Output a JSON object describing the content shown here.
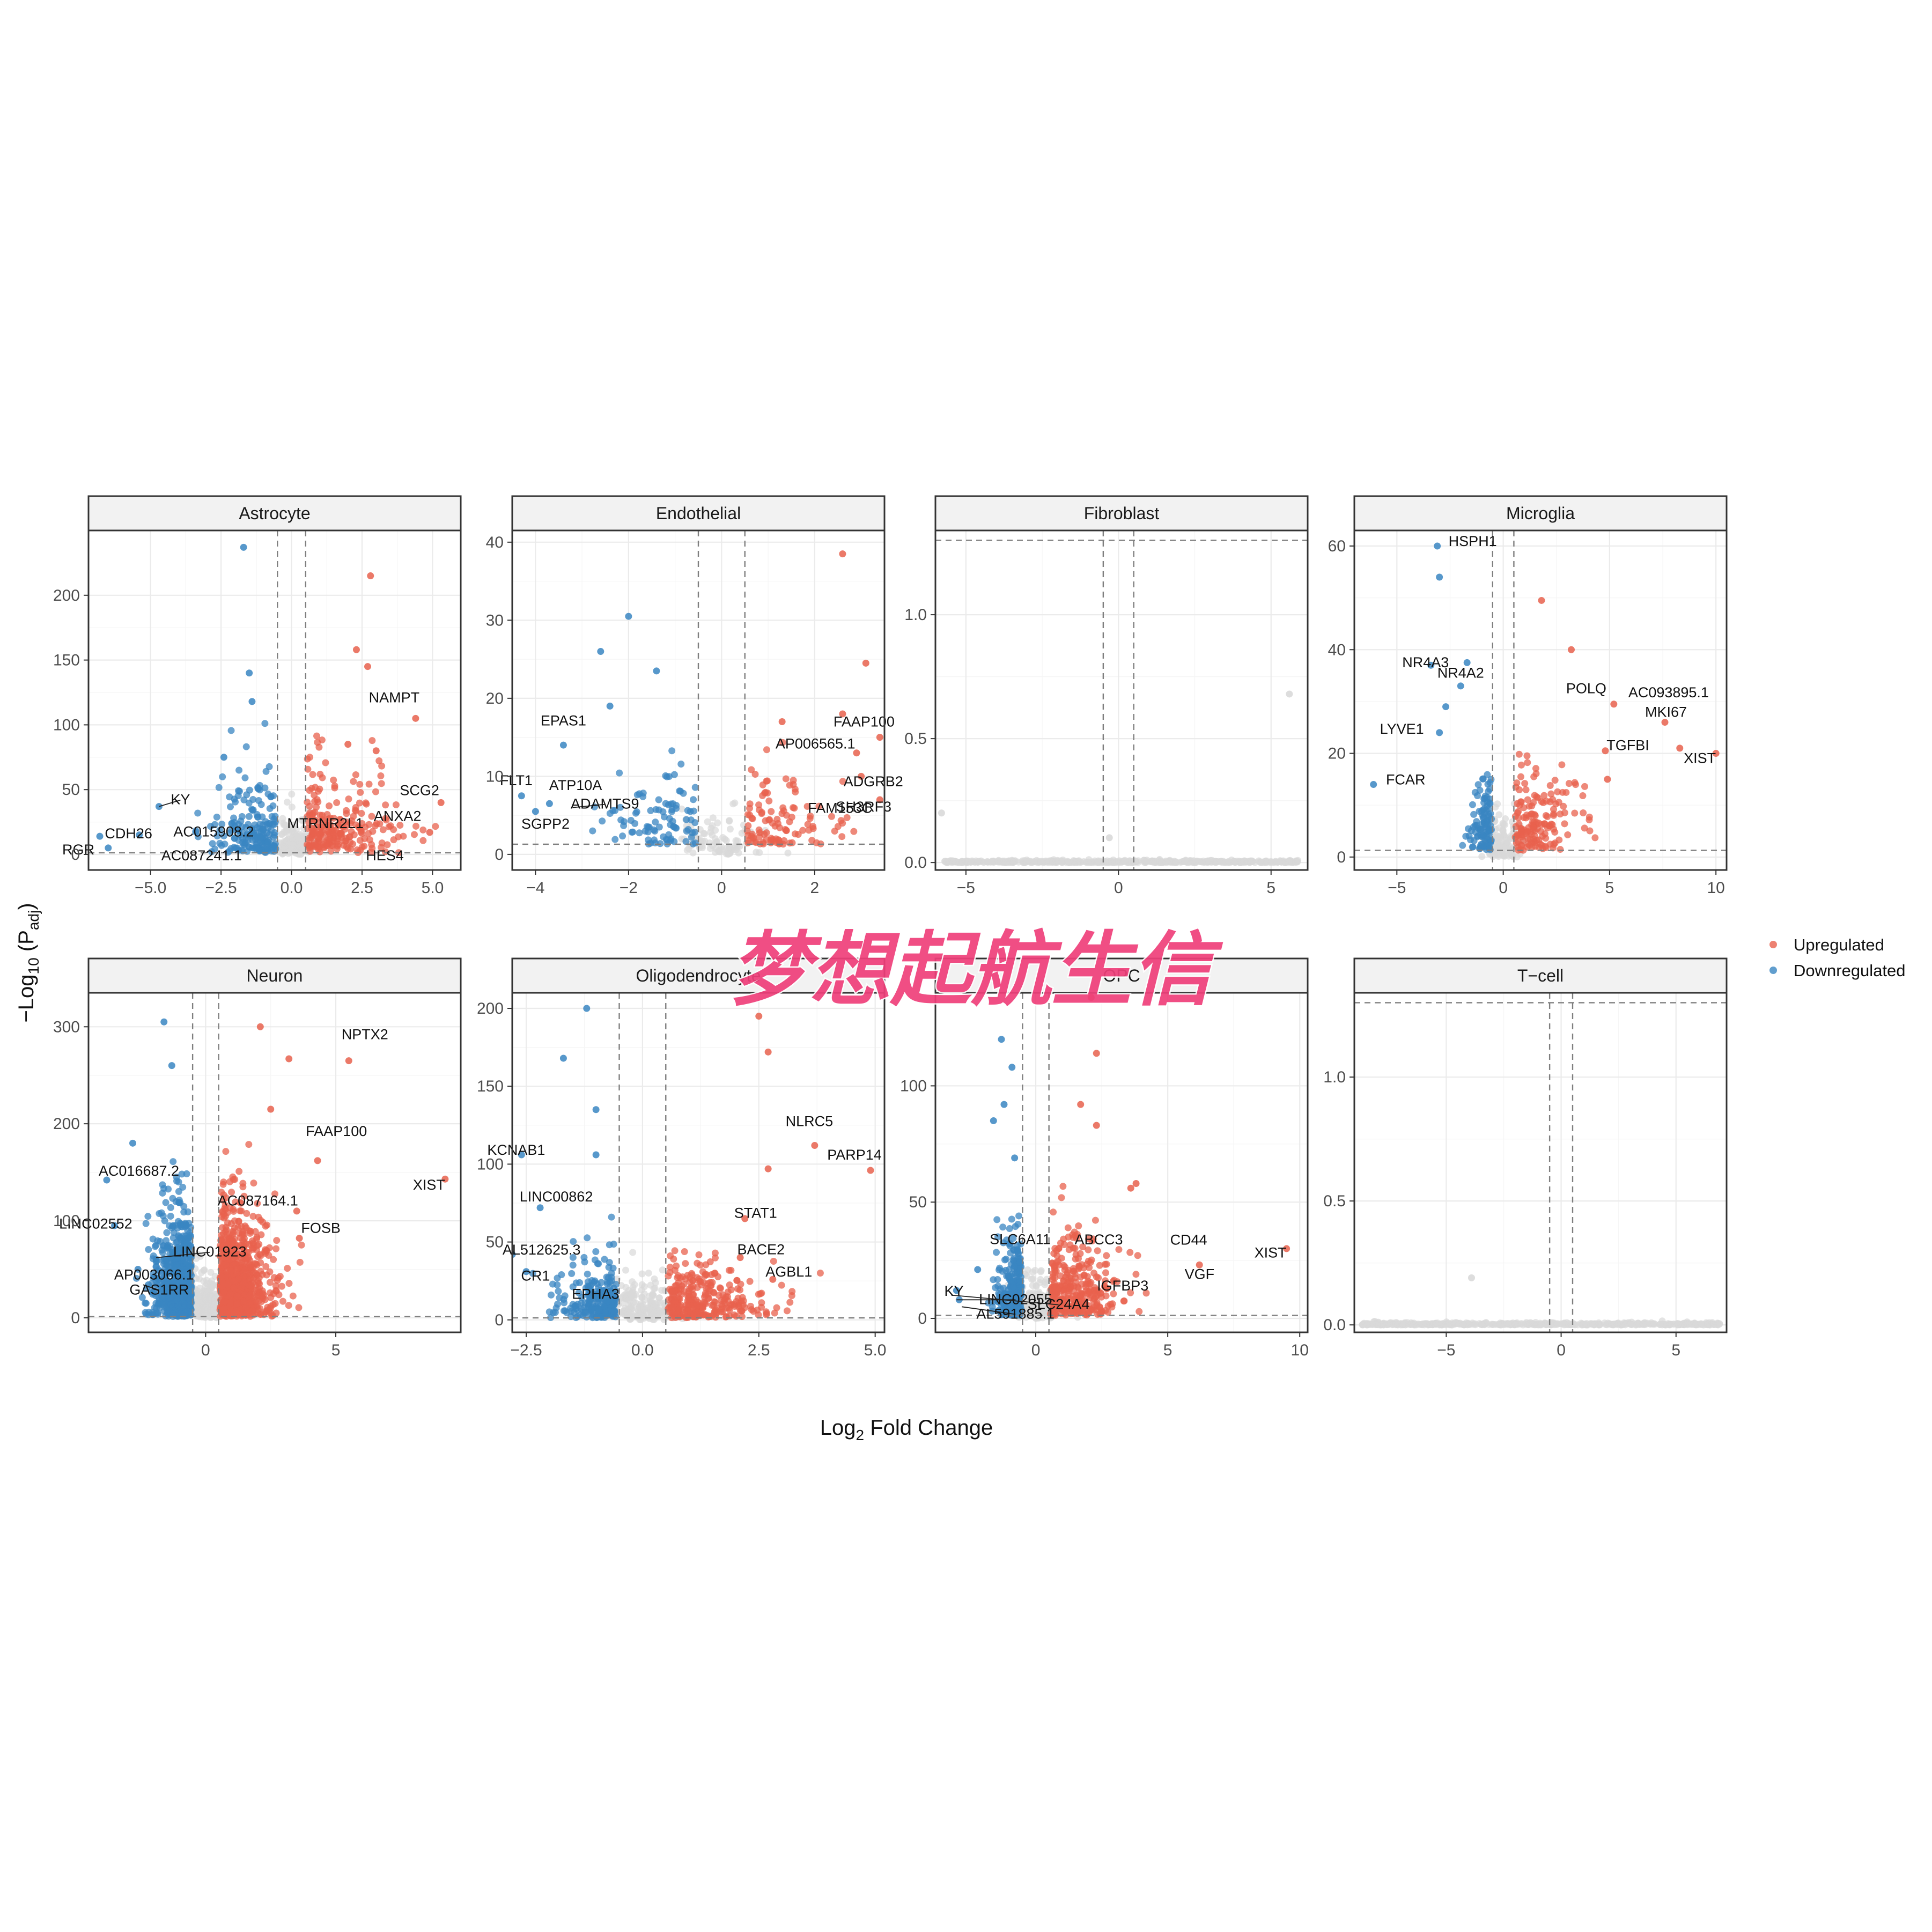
{
  "watermark": "梦想起航生信",
  "axes": {
    "xlabel_main": "Log",
    "xlabel_sub": "2",
    "xlabel_tail": " Fold Change",
    "ylabel_main": "−Log",
    "ylabel_sub": "10",
    "ylabel_paren_open": " (P",
    "ylabel_paren_sub": "adj",
    "ylabel_paren_close": ")"
  },
  "legend": {
    "items": [
      {
        "label": "Upregulated",
        "color": "#e8614d"
      },
      {
        "label": "Downregulated",
        "color": "#3a86c2"
      }
    ]
  },
  "colors": {
    "up": "#e8614d",
    "down": "#3a86c2",
    "ns": "#d9d9d9"
  },
  "chart_data": [
    {
      "type": "scatter",
      "title": "Astrocyte",
      "xlim": [
        -7.2,
        6.0
      ],
      "ylim": [
        -12,
        250
      ],
      "xticks": [
        -5.0,
        -2.5,
        0.0,
        2.5,
        5.0
      ],
      "xtick_labels": [
        "−5.0",
        "−2.5",
        "0.0",
        "2.5",
        "5.0"
      ],
      "yticks": [
        0,
        50,
        100,
        150,
        200
      ],
      "ytick_labels": [
        "0",
        "50",
        "100",
        "150",
        "200"
      ],
      "fc_cut": 0.5,
      "p_line": 1.3,
      "labeled_genes": [
        {
          "gene": "NAMPT",
          "x": 4.4,
          "y": 105
        },
        {
          "gene": "SCG2",
          "x": 5.3,
          "y": 40
        },
        {
          "gene": "ANXA2",
          "x": 4.9,
          "y": 20
        },
        {
          "gene": "HES4",
          "x": 3.5,
          "y": 3
        },
        {
          "gene": "MTRNR2L1",
          "x": 1.2,
          "y": 22
        },
        {
          "gene": "KY",
          "x": -4.7,
          "y": 37
        },
        {
          "gene": "CDH26",
          "x": -5.4,
          "y": 15
        },
        {
          "gene": "RGR",
          "x": -6.8,
          "y": 5
        },
        {
          "gene": "AC015908.2",
          "x": -2.0,
          "y": 18
        },
        {
          "gene": "AC087241.1",
          "x": -3.0,
          "y": 2
        }
      ],
      "highlights_up": [
        [
          2.8,
          215
        ],
        [
          2.3,
          158
        ],
        [
          2.7,
          145
        ],
        [
          4.4,
          105
        ],
        [
          5.3,
          40
        ],
        [
          4.9,
          17
        ],
        [
          2.0,
          85
        ],
        [
          3.0,
          80
        ]
      ],
      "highlights_down": [
        [
          -1.7,
          237
        ],
        [
          -1.5,
          140
        ],
        [
          -1.4,
          118
        ],
        [
          -4.7,
          37
        ],
        [
          -5.4,
          15
        ],
        [
          -6.8,
          14
        ],
        [
          -6.5,
          5
        ],
        [
          -2.4,
          75
        ]
      ]
    },
    {
      "type": "scatter",
      "title": "Endothelial",
      "xlim": [
        -4.5,
        3.5
      ],
      "ylim": [
        -2,
        41.5
      ],
      "xticks": [
        -4,
        -2,
        0,
        2
      ],
      "xtick_labels": [
        "−4",
        "−2",
        "0",
        "2"
      ],
      "yticks": [
        0,
        10,
        20,
        30,
        40
      ],
      "ytick_labels": [
        "0",
        "10",
        "20",
        "30",
        "40"
      ],
      "fc_cut": 0.5,
      "p_line": 1.3,
      "labeled_genes": [
        {
          "gene": "FAAP100",
          "x": 2.6,
          "y": 15
        },
        {
          "gene": "AP006565.1",
          "x": 1.9,
          "y": 13
        },
        {
          "gene": "ADGRB2",
          "x": 2.8,
          "y": 9
        },
        {
          "gene": "FAM153C",
          "x": 2.2,
          "y": 6
        },
        {
          "gene": "SH3RF3",
          "x": 3.4,
          "y": 7
        },
        {
          "gene": "EPAS1",
          "x": -3.4,
          "y": 15
        },
        {
          "gene": "FLT1",
          "x": -4.3,
          "y": 7.5
        },
        {
          "gene": "ATP10A",
          "x": -3.6,
          "y": 7
        },
        {
          "gene": "ADAMTS9",
          "x": -3.2,
          "y": 6
        },
        {
          "gene": "SGPP2",
          "x": -3.9,
          "y": 5.5
        }
      ],
      "highlights_up": [
        [
          2.6,
          38.5
        ],
        [
          3.1,
          24.5
        ],
        [
          2.6,
          18
        ],
        [
          3.4,
          15
        ],
        [
          2.9,
          13
        ],
        [
          3.0,
          10
        ],
        [
          3.4,
          7
        ],
        [
          1.3,
          17
        ]
      ],
      "highlights_down": [
        [
          -2.0,
          30.5
        ],
        [
          -2.6,
          26
        ],
        [
          -1.4,
          23.5
        ],
        [
          -2.4,
          19
        ],
        [
          -3.4,
          14
        ],
        [
          -4.3,
          7.5
        ],
        [
          -4.0,
          5.5
        ],
        [
          -3.7,
          6.5
        ]
      ]
    },
    {
      "type": "scatter",
      "title": "Fibroblast",
      "xlim": [
        -6.0,
        6.2
      ],
      "ylim": [
        -0.03,
        1.34
      ],
      "xticks": [
        -5,
        0,
        5
      ],
      "xtick_labels": [
        "−5",
        "0",
        "5"
      ],
      "yticks": [
        0.0,
        0.5,
        1.0
      ],
      "ytick_labels": [
        "0.0",
        "0.5",
        "1.0"
      ],
      "fc_cut": 0.5,
      "p_line": 1.3,
      "labeled_genes": [],
      "highlights_up": [],
      "highlights_down": [],
      "highlights_ns": [
        [
          5.6,
          0.68
        ],
        [
          -5.8,
          0.2
        ],
        [
          -0.3,
          0.1
        ]
      ]
    },
    {
      "type": "scatter",
      "title": "Microglia",
      "xlim": [
        -7.0,
        10.5
      ],
      "ylim": [
        -2.5,
        63
      ],
      "xticks": [
        -5,
        0,
        5,
        10
      ],
      "xtick_labels": [
        "−5",
        "0",
        "5",
        "10"
      ],
      "yticks": [
        0,
        20,
        40,
        60
      ],
      "ytick_labels": [
        "0",
        "20",
        "40",
        "60"
      ],
      "fc_cut": 0.5,
      "p_line": 1.3,
      "labeled_genes": [
        {
          "gene": "HSPH1",
          "x": -3.2,
          "y": 60
        },
        {
          "gene": "NR4A3",
          "x": -3.4,
          "y": 36
        },
        {
          "gene": "NR4A2",
          "x": -2.0,
          "y": 34
        },
        {
          "gene": "LYVE1",
          "x": -3.0,
          "y": 24
        },
        {
          "gene": "FCAR",
          "x": -6.1,
          "y": 14
        },
        {
          "gene": "POLQ",
          "x": 3.4,
          "y": 31
        },
        {
          "gene": "AC093895.1",
          "x": 5.0,
          "y": 30
        },
        {
          "gene": "MKI67",
          "x": 7.4,
          "y": 26
        },
        {
          "gene": "TGFBI",
          "x": 4.6,
          "y": 20
        },
        {
          "gene": "XIST",
          "x": 10.0,
          "y": 20
        }
      ],
      "highlights_up": [
        [
          1.8,
          49.5
        ],
        [
          3.2,
          40
        ],
        [
          5.2,
          29.5
        ],
        [
          7.6,
          26
        ],
        [
          4.8,
          20.5
        ],
        [
          8.3,
          21
        ],
        [
          10.0,
          20
        ],
        [
          4.9,
          15
        ]
      ],
      "highlights_down": [
        [
          -3.1,
          60
        ],
        [
          -3.0,
          54
        ],
        [
          -3.4,
          37
        ],
        [
          -1.7,
          37.5
        ],
        [
          -2.0,
          33
        ],
        [
          -3.0,
          24
        ],
        [
          -6.1,
          14
        ],
        [
          -2.7,
          29
        ]
      ]
    },
    {
      "type": "scatter",
      "title": "Neuron",
      "xlim": [
        -4.5,
        9.8
      ],
      "ylim": [
        -15,
        335
      ],
      "xticks": [
        0,
        5
      ],
      "xtick_labels": [
        "0",
        "5"
      ],
      "yticks": [
        0,
        100,
        200,
        300
      ],
      "ytick_labels": [
        "0",
        "100",
        "200",
        "300"
      ],
      "fc_cut": 0.5,
      "p_line": 1.3,
      "labeled_genes": [
        {
          "gene": "NPTX2",
          "x": 5.5,
          "y": 265
        },
        {
          "gene": "FAAP100",
          "x": 4.2,
          "y": 193
        },
        {
          "gene": "XIST",
          "x": 9.2,
          "y": 143
        },
        {
          "gene": "AC087164.1",
          "x": 1.8,
          "y": 118
        },
        {
          "gene": "FOSB",
          "x": 3.6,
          "y": 93
        },
        {
          "gene": "AC016687.2",
          "x": -3.8,
          "y": 142
        },
        {
          "gene": "LINC02552",
          "x": -3.4,
          "y": 92
        },
        {
          "gene": "LINC01923",
          "x": -1.9,
          "y": 62
        },
        {
          "gene": "AP003066.1",
          "x": -2.6,
          "y": 45
        },
        {
          "gene": "GAS1RR",
          "x": -2.4,
          "y": 34
        }
      ],
      "highlights_up": [
        [
          5.5,
          265
        ],
        [
          4.3,
          162
        ],
        [
          9.2,
          143
        ],
        [
          3.2,
          267
        ],
        [
          3.5,
          110
        ],
        [
          2.1,
          300
        ],
        [
          2.5,
          215
        ],
        [
          3.6,
          82
        ]
      ],
      "highlights_down": [
        [
          -3.8,
          142
        ],
        [
          -3.5,
          95
        ],
        [
          -1.6,
          305
        ],
        [
          -1.9,
          58
        ],
        [
          -2.6,
          50
        ],
        [
          -2.2,
          34
        ],
        [
          -1.3,
          260
        ],
        [
          -2.8,
          180
        ]
      ]
    },
    {
      "type": "scatter",
      "title": "Oligodendrocyte",
      "xlim": [
        -2.8,
        5.2
      ],
      "ylim": [
        -8,
        210
      ],
      "xticks": [
        -2.5,
        0.0,
        2.5,
        5.0
      ],
      "xtick_labels": [
        "−2.5",
        "0.0",
        "2.5",
        "5.0"
      ],
      "yticks": [
        0,
        50,
        100,
        150,
        200
      ],
      "ytick_labels": [
        "0",
        "50",
        "100",
        "150",
        "200"
      ],
      "fc_cut": 0.5,
      "p_line": 1.3,
      "labeled_genes": [
        {
          "gene": "NLRC5",
          "x": 3.7,
          "y": 112
        },
        {
          "gene": "PARP14",
          "x": 4.9,
          "y": 96
        },
        {
          "gene": "STAT1",
          "x": 2.2,
          "y": 62
        },
        {
          "gene": "BACE2",
          "x": 2.2,
          "y": 40
        },
        {
          "gene": "AGBL1",
          "x": 2.8,
          "y": 25
        },
        {
          "gene": "KCNAB1",
          "x": -2.6,
          "y": 106
        },
        {
          "gene": "LINC00862",
          "x": -2.2,
          "y": 74
        },
        {
          "gene": "AL512625.3",
          "x": -2.4,
          "y": 42
        },
        {
          "gene": "CR1",
          "x": -2.3,
          "y": 28
        },
        {
          "gene": "EPHA3",
          "x": -1.7,
          "y": 10
        }
      ],
      "highlights_up": [
        [
          2.7,
          172
        ],
        [
          2.5,
          195
        ],
        [
          3.7,
          112
        ],
        [
          4.9,
          96
        ],
        [
          2.7,
          97
        ],
        [
          2.2,
          65
        ],
        [
          2.1,
          40
        ],
        [
          2.8,
          26
        ]
      ],
      "highlights_down": [
        [
          -1.2,
          200
        ],
        [
          -1.7,
          168
        ],
        [
          -1.0,
          135
        ],
        [
          -2.6,
          106
        ],
        [
          -1.0,
          106
        ],
        [
          -2.2,
          72
        ],
        [
          -2.5,
          31
        ],
        [
          -2.8,
          42
        ]
      ]
    },
    {
      "type": "scatter",
      "title": "OPC",
      "xlim": [
        -3.8,
        10.3
      ],
      "ylim": [
        -6,
        140
      ],
      "xticks": [
        0,
        5,
        10
      ],
      "xtick_labels": [
        "0",
        "5",
        "10"
      ],
      "yticks": [
        0,
        50,
        100
      ],
      "ytick_labels": [
        "0",
        "50",
        "100"
      ],
      "fc_cut": 0.5,
      "p_line": 1.3,
      "labeled_genes": [
        {
          "gene": "ABCC3",
          "x": 3.2,
          "y": 30
        },
        {
          "gene": "CD44",
          "x": 6.2,
          "y": 29
        },
        {
          "gene": "XIST",
          "x": 9.5,
          "y": 29
        },
        {
          "gene": "IGFBP3",
          "x": 3.5,
          "y": 12
        },
        {
          "gene": "VGF",
          "x": 6.0,
          "y": 17
        },
        {
          "gene": "SLC6A11",
          "x": -1.2,
          "y": 25
        },
        {
          "gene": "KY",
          "x": -3.1,
          "y": 12
        },
        {
          "gene": "LINC02055",
          "x": -3.0,
          "y": 8
        },
        {
          "gene": "AL591885.1",
          "x": -2.8,
          "y": 5
        },
        {
          "gene": "SLC24A4",
          "x": -3.2,
          "y": 10
        }
      ],
      "highlights_up": [
        [
          2.1,
          138
        ],
        [
          2.3,
          114
        ],
        [
          1.7,
          92
        ],
        [
          2.3,
          83
        ],
        [
          3.6,
          56
        ],
        [
          6.2,
          23
        ],
        [
          9.5,
          30
        ],
        [
          3.8,
          58
        ]
      ],
      "highlights_down": [
        [
          -1.3,
          120
        ],
        [
          -0.9,
          108
        ],
        [
          -1.2,
          92
        ],
        [
          -1.6,
          85
        ],
        [
          -0.8,
          69
        ],
        [
          -3.0,
          12
        ],
        [
          -2.9,
          8
        ],
        [
          -2.2,
          21
        ]
      ]
    },
    {
      "type": "scatter",
      "title": "T−cell",
      "xlim": [
        -9.0,
        7.2
      ],
      "ylim": [
        -0.03,
        1.34
      ],
      "xticks": [
        -5,
        0,
        5
      ],
      "xtick_labels": [
        "−5",
        "0",
        "5"
      ],
      "yticks": [
        0.0,
        0.5,
        1.0
      ],
      "ytick_labels": [
        "0.0",
        "0.5",
        "1.0"
      ],
      "fc_cut": 0.5,
      "p_line": 1.3,
      "labeled_genes": [],
      "highlights_up": [],
      "highlights_down": [],
      "highlights_ns": [
        [
          -3.9,
          0.19
        ]
      ]
    }
  ]
}
